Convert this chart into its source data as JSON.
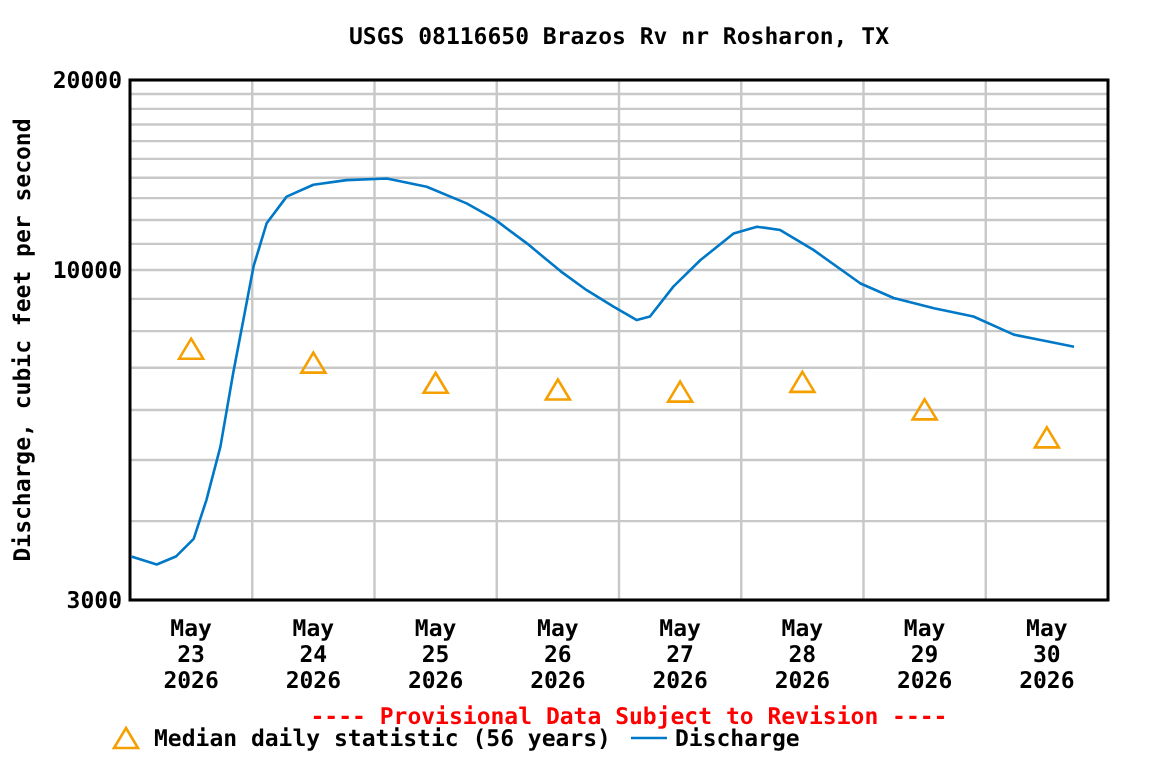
{
  "chart_data": {
    "type": "line",
    "title": "USGS 08116650 Brazos Rv nr Rosharon, TX",
    "ylabel": "Discharge, cubic feet per second",
    "annotations": [
      "---- Provisional Data Subject to Revision ----"
    ],
    "log": true,
    "grid": true,
    "legend": "bottom",
    "xlim": [
      "2026-05-23T00:00",
      "2026-05-31T00:00"
    ],
    "xticks": [
      {
        "value": "2026-05-23T12:00",
        "label": "May 23 2026"
      },
      {
        "value": "2026-05-24T12:00",
        "label": "May 24 2026"
      },
      {
        "value": "2026-05-25T12:00",
        "label": "May 25 2026"
      },
      {
        "value": "2026-05-26T12:00",
        "label": "May 26 2026"
      },
      {
        "value": "2026-05-27T12:00",
        "label": "May 27 2026"
      },
      {
        "value": "2026-05-28T12:00",
        "label": "May 28 2026"
      },
      {
        "value": "2026-05-29T12:00",
        "label": "May 29 2026"
      },
      {
        "value": "2026-05-30T12:00",
        "label": "May 30 2026"
      },
      {
        "value": "2026-05-24T00:00",
        "label": null
      },
      {
        "value": "2026-05-25T00:00",
        "label": null
      },
      {
        "value": "2026-05-26T00:00",
        "label": null
      },
      {
        "value": "2026-05-27T00:00",
        "label": null
      },
      {
        "value": "2026-05-28T00:00",
        "label": null
      },
      {
        "value": "2026-05-29T00:00",
        "label": null
      },
      {
        "value": "2026-05-30T00:00",
        "label": null
      }
    ],
    "ylim": [
      3000,
      20000
    ],
    "yticks": [
      3000,
      {
        "value": 4000,
        "label": null
      },
      {
        "value": 5000,
        "label": null
      },
      {
        "value": 6000,
        "label": null
      },
      {
        "value": 7000,
        "label": null
      },
      {
        "value": 8000,
        "label": null
      },
      {
        "value": 9000,
        "label": null
      },
      10000,
      {
        "value": 11000,
        "label": null
      },
      {
        "value": 12000,
        "label": null
      },
      {
        "value": 13000,
        "label": null
      },
      {
        "value": 14000,
        "label": null
      },
      {
        "value": 15000,
        "label": null
      },
      {
        "value": 16000,
        "label": null
      },
      {
        "value": 17000,
        "label": null
      },
      {
        "value": 18000,
        "label": null
      },
      {
        "value": 19000,
        "label": null
      },
      20000
    ],
    "series": [
      {
        "name": "Median daily statistic (56 years)",
        "type": "scatter",
        "marker": "triangle",
        "color": "#f5a000",
        "x": [
          "2026-05-23T12:00",
          "2026-05-24T12:00",
          "2026-05-25T12:00",
          "2026-05-26T12:00",
          "2026-05-27T12:00",
          "2026-05-28T12:00",
          "2026-05-29T12:00",
          "2026-05-30T12:00"
        ],
        "values": [
          7450,
          7080,
          6580,
          6420,
          6370,
          6600,
          5970,
          5390
        ]
      },
      {
        "name": "Discharge",
        "type": "line",
        "marker": "none",
        "color": "#0078c8",
        "x": [
          "2026-05-23T00:15",
          "2026-05-23T05:15",
          "2026-05-23T09:00",
          "2026-05-23T12:30",
          "2026-05-23T15:00",
          "2026-05-23T17:45",
          "2026-05-23T20:15",
          "2026-05-23T22:15",
          "2026-05-24T00:15",
          "2026-05-24T02:50",
          "2026-05-24T06:45",
          "2026-05-24T12:00",
          "2026-05-24T18:30",
          "2026-05-25T02:25",
          "2026-05-25T10:15",
          "2026-05-25T18:05",
          "2026-05-25T23:25",
          "2026-05-26T05:55",
          "2026-05-26T12:30",
          "2026-05-26T17:40",
          "2026-05-26T22:55",
          "2026-05-27T03:30",
          "2026-05-27T06:05",
          "2026-05-27T10:40",
          "2026-05-27T16:00",
          "2026-05-27T22:30",
          "2026-05-28T03:05",
          "2026-05-28T07:40",
          "2026-05-28T14:10",
          "2026-05-28T23:25",
          "2026-05-29T05:55",
          "2026-05-29T13:50",
          "2026-05-29T21:35",
          "2026-05-30T05:30",
          "2026-05-30T12:00",
          "2026-05-30T17:20"
        ],
        "values": [
          3515,
          3415,
          3515,
          3750,
          4320,
          5250,
          6860,
          8330,
          10130,
          11860,
          13070,
          13650,
          13880,
          13960,
          13550,
          12750,
          12060,
          11020,
          9960,
          9290,
          8750,
          8330,
          8440,
          9410,
          10370,
          11420,
          11710,
          11570,
          10760,
          9520,
          9030,
          8700,
          8440,
          7900,
          7710,
          7560
        ]
      }
    ]
  }
}
